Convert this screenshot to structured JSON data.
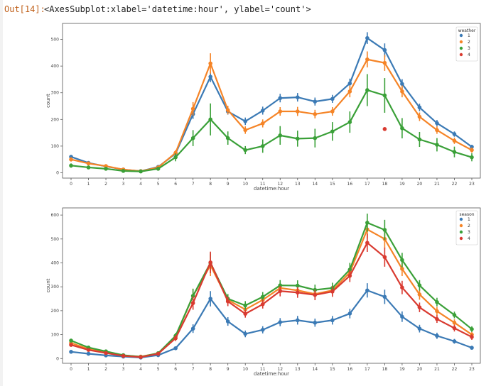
{
  "output": {
    "prompt": "Out[14]:",
    "text": "<AxesSubplot:xlabel='datetime:hour', ylabel='count'>"
  },
  "chart_data": [
    {
      "type": "line",
      "xlabel": "datetime:hour",
      "ylabel": "count",
      "categories": [
        "0",
        "1",
        "2",
        "3",
        "4",
        "5",
        "6",
        "7",
        "8",
        "9",
        "10",
        "11",
        "12",
        "13",
        "14",
        "15",
        "16",
        "17",
        "18",
        "19",
        "20",
        "21",
        "22",
        "23"
      ],
      "ylim": [
        -20,
        560
      ],
      "yticks": [
        0,
        100,
        200,
        300,
        400,
        500
      ],
      "legend_title": "weather",
      "legend_position": "top-right",
      "series": [
        {
          "name": "1",
          "color": "#3b7ab5",
          "values": [
            60,
            37,
            24,
            12,
            6,
            22,
            72,
            220,
            360,
            230,
            193,
            233,
            280,
            283,
            267,
            277,
            335,
            505,
            460,
            333,
            245,
            186,
            145,
            97
          ],
          "err": [
            6,
            4,
            4,
            2,
            1,
            3,
            8,
            18,
            20,
            12,
            14,
            15,
            16,
            16,
            15,
            15,
            18,
            22,
            25,
            18,
            14,
            12,
            10,
            8
          ]
        },
        {
          "name": "2",
          "color": "#f58427",
          "values": [
            50,
            35,
            25,
            12,
            6,
            20,
            75,
            240,
            410,
            235,
            160,
            185,
            230,
            230,
            220,
            230,
            305,
            425,
            412,
            305,
            210,
            160,
            120,
            85
          ],
          "err": [
            8,
            6,
            4,
            2,
            2,
            4,
            10,
            25,
            38,
            16,
            14,
            15,
            16,
            17,
            16,
            16,
            22,
            30,
            30,
            22,
            16,
            14,
            12,
            10
          ]
        },
        {
          "name": "3",
          "color": "#3aa038",
          "values": [
            27,
            20,
            15,
            7,
            5,
            15,
            58,
            130,
            200,
            130,
            85,
            100,
            140,
            128,
            130,
            155,
            190,
            310,
            290,
            167,
            125,
            105,
            78,
            58
          ],
          "err": [
            8,
            6,
            5,
            3,
            3,
            5,
            15,
            30,
            60,
            25,
            15,
            25,
            35,
            30,
            35,
            35,
            40,
            60,
            65,
            38,
            28,
            25,
            20,
            15
          ]
        },
        {
          "name": "4",
          "color": "#d93a30",
          "x": [
            "18"
          ],
          "values": [
            164
          ],
          "err": [
            0
          ]
        }
      ]
    },
    {
      "type": "line",
      "xlabel": "datetime:hour",
      "ylabel": "count",
      "categories": [
        "0",
        "1",
        "2",
        "3",
        "4",
        "5",
        "6",
        "7",
        "8",
        "9",
        "10",
        "11",
        "12",
        "13",
        "14",
        "15",
        "16",
        "17",
        "18",
        "19",
        "20",
        "21",
        "22",
        "23"
      ],
      "ylim": [
        -20,
        630
      ],
      "yticks": [
        0,
        100,
        200,
        300,
        400,
        500,
        600
      ],
      "legend_title": "season",
      "legend_position": "top-right",
      "series": [
        {
          "name": "1",
          "color": "#3b7ab5",
          "values": [
            28,
            20,
            13,
            8,
            4,
            14,
            43,
            125,
            250,
            155,
            103,
            120,
            152,
            160,
            150,
            160,
            188,
            285,
            258,
            175,
            125,
            95,
            72,
            45
          ],
          "err": [
            5,
            4,
            3,
            2,
            1,
            3,
            7,
            18,
            32,
            18,
            14,
            15,
            17,
            18,
            17,
            18,
            20,
            30,
            30,
            22,
            16,
            13,
            10,
            8
          ]
        },
        {
          "name": "2",
          "color": "#f58427",
          "values": [
            65,
            40,
            27,
            13,
            8,
            22,
            92,
            262,
            390,
            245,
            205,
            245,
            295,
            285,
            270,
            285,
            360,
            540,
            500,
            375,
            268,
            198,
            150,
            100
          ],
          "err": [
            8,
            6,
            4,
            3,
            2,
            4,
            12,
            30,
            45,
            20,
            18,
            20,
            22,
            22,
            22,
            22,
            28,
            38,
            40,
            30,
            22,
            18,
            14,
            12
          ]
        },
        {
          "name": "3",
          "color": "#3aa038",
          "values": [
            75,
            46,
            30,
            14,
            7,
            22,
            95,
            262,
            400,
            250,
            222,
            258,
            306,
            305,
            287,
            295,
            372,
            568,
            538,
            412,
            306,
            236,
            182,
            123
          ],
          "err": [
            8,
            6,
            4,
            3,
            2,
            4,
            12,
            30,
            42,
            20,
            18,
            20,
            22,
            22,
            22,
            22,
            28,
            38,
            42,
            30,
            22,
            18,
            14,
            12
          ]
        },
        {
          "name": "4",
          "color": "#d93a30",
          "values": [
            57,
            36,
            23,
            11,
            6,
            20,
            85,
            232,
            402,
            239,
            187,
            227,
            282,
            276,
            266,
            280,
            346,
            484,
            424,
            297,
            214,
            165,
            127,
            90
          ],
          "err": [
            8,
            6,
            4,
            3,
            2,
            4,
            12,
            28,
            45,
            20,
            16,
            18,
            22,
            22,
            22,
            22,
            26,
            38,
            40,
            28,
            20,
            16,
            14,
            12
          ]
        }
      ]
    }
  ]
}
